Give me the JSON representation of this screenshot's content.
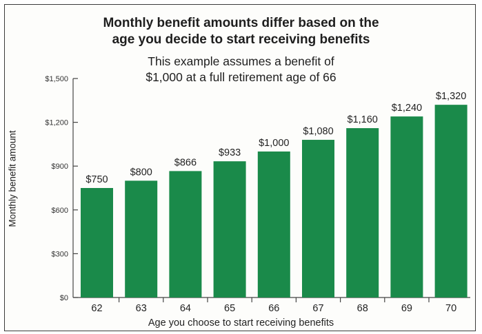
{
  "chart_data": {
    "type": "bar",
    "title_line1": "Monthly benefit amounts differ based on the",
    "title_line2": "age you decide to start receiving benefits",
    "subtitle_line1": "This example assumes a benefit of",
    "subtitle_line2": "$1,000 at a full retirement age of 66",
    "xlabel": "Age you choose to start receiving benefits",
    "ylabel": "Monthly benefit amount",
    "categories": [
      "62",
      "63",
      "64",
      "65",
      "66",
      "67",
      "68",
      "69",
      "70"
    ],
    "values": [
      750,
      800,
      866,
      933,
      1000,
      1080,
      1160,
      1240,
      1320
    ],
    "value_labels": [
      "$750",
      "$800",
      "$866",
      "$933",
      "$1,000",
      "$1,080",
      "$1,160",
      "$1,240",
      "$1,320"
    ],
    "yticks": [
      0,
      300,
      600,
      900,
      1200,
      1500
    ],
    "ytick_labels": [
      "$0",
      "$300",
      "$600",
      "$900",
      "$1,200",
      "$1,500"
    ],
    "ylim": [
      0,
      1500
    ],
    "grid": false,
    "legend": "none",
    "bar_color": "#1a8a4a"
  }
}
